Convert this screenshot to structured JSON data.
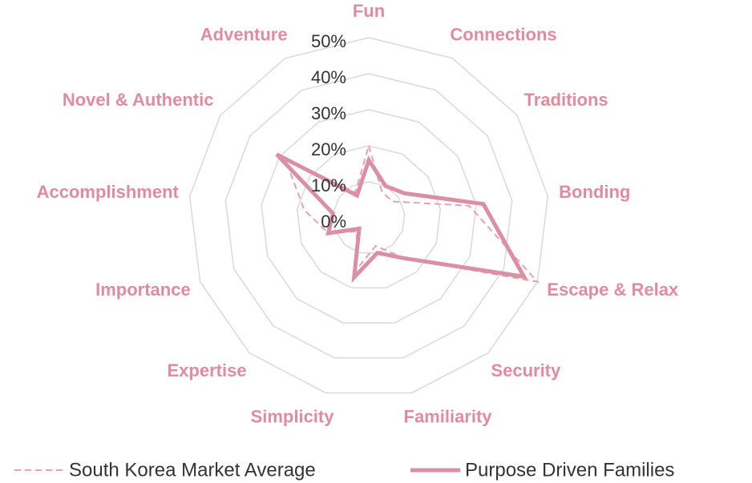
{
  "chart_data": {
    "type": "radar",
    "categories": [
      "Fun",
      "Connections",
      "Traditions",
      "Bonding",
      "Escape & Relax",
      "Security",
      "Familiarity",
      "Simplicity",
      "Expertise",
      "Importance",
      "Accomplishment",
      "Novel & Authentic",
      "Adventure"
    ],
    "series": [
      {
        "name": "South Korea Market Average",
        "color": "#e8a0b2",
        "dashed": true,
        "values": [
          20,
          8,
          8,
          28,
          50,
          15,
          8,
          15,
          5,
          12,
          18,
          28,
          8
        ]
      },
      {
        "name": "Purpose Driven Families",
        "color": "#db8fa3",
        "dashed": false,
        "values": [
          16,
          10,
          12,
          32,
          46,
          15,
          10,
          17,
          4,
          12,
          10,
          31,
          7
        ]
      }
    ],
    "ylim": [
      0,
      50
    ],
    "yticks": [
      {
        "value": 0,
        "label": "0%"
      },
      {
        "value": 10,
        "label": "10%"
      },
      {
        "value": 20,
        "label": "20%"
      },
      {
        "value": 30,
        "label": "30%"
      },
      {
        "value": 40,
        "label": "40%"
      },
      {
        "value": 50,
        "label": "50%"
      }
    ],
    "grid": true,
    "legend": "bottom"
  }
}
